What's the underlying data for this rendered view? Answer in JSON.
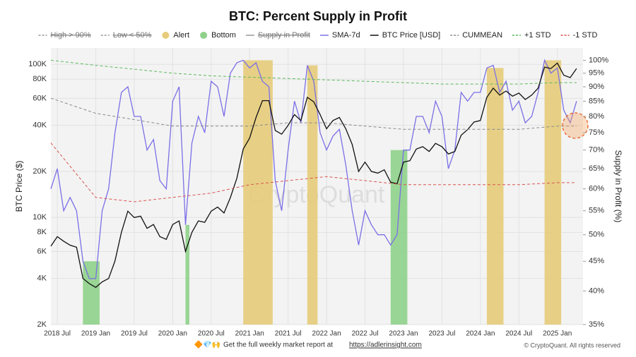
{
  "chart_data": {
    "type": "line",
    "title": "BTC: Percent Supply in Profit",
    "ylabel": "BTC Price ($)",
    "y2label": "Supply in Profit (%)",
    "watermark": "CryptoQuant",
    "footer_icons": "🔶💎🙌",
    "footer_text": "Get the full weekly market report at",
    "footer_link": "https://adlerinsight.com",
    "credit": "© CryptoQuant. All rights reserved",
    "ylog": true,
    "y2log": true,
    "grid": true,
    "xlim": [
      "2018-06",
      "2025-05"
    ],
    "xticks": [
      {
        "value": "2018-07",
        "label": "2018 Jul"
      },
      {
        "value": "2019-01",
        "label": "2019 Jan"
      },
      {
        "value": "2019-07",
        "label": "2019 Jul"
      },
      {
        "value": "2020-01",
        "label": "2020 Jan"
      },
      {
        "value": "2020-07",
        "label": "2020 Jul"
      },
      {
        "value": "2021-01",
        "label": "2021 Jan"
      },
      {
        "value": "2021-07",
        "label": "2021 Jul"
      },
      {
        "value": "2022-01",
        "label": "2022 Jan"
      },
      {
        "value": "2022-07",
        "label": "2022 Jul"
      },
      {
        "value": "2023-01",
        "label": "2023 Jan"
      },
      {
        "value": "2023-07",
        "label": "2023 Jul"
      },
      {
        "value": "2024-01",
        "label": "2024 Jan"
      },
      {
        "value": "2024-07",
        "label": "2024 Jul"
      },
      {
        "value": "2025-01",
        "label": "2025 Jan"
      }
    ],
    "ylim": [
      2000,
      128000
    ],
    "yticks": [
      {
        "value": 2000,
        "label": "2K"
      },
      {
        "value": 4000,
        "label": "4K"
      },
      {
        "value": 6000,
        "label": "6K"
      },
      {
        "value": 8000,
        "label": "8K"
      },
      {
        "value": 10000,
        "label": "10K"
      },
      {
        "value": 20000,
        "label": "20K"
      },
      {
        "value": 40000,
        "label": "40K"
      },
      {
        "value": 60000,
        "label": "60K"
      },
      {
        "value": 80000,
        "label": "80K"
      },
      {
        "value": 100000,
        "label": "100K"
      }
    ],
    "y2lim": [
      35,
      105
    ],
    "y2ticks": [
      {
        "value": 35,
        "label": "35%"
      },
      {
        "value": 40,
        "label": "40%"
      },
      {
        "value": 45,
        "label": "45%"
      },
      {
        "value": 50,
        "label": "50%"
      },
      {
        "value": 55,
        "label": "55%"
      },
      {
        "value": 60,
        "label": "60%"
      },
      {
        "value": 65,
        "label": "65%"
      },
      {
        "value": 70,
        "label": "70%"
      },
      {
        "value": 75,
        "label": "75%"
      },
      {
        "value": 80,
        "label": "80%"
      },
      {
        "value": 85,
        "label": "85%"
      },
      {
        "value": 90,
        "label": "90%"
      },
      {
        "value": 95,
        "label": "95%"
      },
      {
        "value": 100,
        "label": "100%"
      }
    ],
    "x": [
      "2018-06",
      "2018-07",
      "2018-08",
      "2018-09",
      "2018-10",
      "2018-11",
      "2018-12",
      "2019-01",
      "2019-02",
      "2019-03",
      "2019-04",
      "2019-05",
      "2019-06",
      "2019-07",
      "2019-08",
      "2019-09",
      "2019-10",
      "2019-11",
      "2019-12",
      "2020-01",
      "2020-02",
      "2020-03",
      "2020-04",
      "2020-05",
      "2020-06",
      "2020-07",
      "2020-08",
      "2020-09",
      "2020-10",
      "2020-11",
      "2020-12",
      "2021-01",
      "2021-02",
      "2021-03",
      "2021-04",
      "2021-05",
      "2021-06",
      "2021-07",
      "2021-08",
      "2021-09",
      "2021-10",
      "2021-11",
      "2021-12",
      "2022-01",
      "2022-02",
      "2022-03",
      "2022-04",
      "2022-05",
      "2022-06",
      "2022-07",
      "2022-08",
      "2022-09",
      "2022-10",
      "2022-11",
      "2022-12",
      "2023-01",
      "2023-02",
      "2023-03",
      "2023-04",
      "2023-05",
      "2023-06",
      "2023-07",
      "2023-08",
      "2023-09",
      "2023-10",
      "2023-11",
      "2023-12",
      "2024-01",
      "2024-02",
      "2024-03",
      "2024-04",
      "2024-05",
      "2024-06",
      "2024-07",
      "2024-08",
      "2024-09",
      "2024-10",
      "2024-11",
      "2024-12",
      "2025-01",
      "2025-02",
      "2025-03",
      "2025-04"
    ],
    "series": [
      {
        "name": "High > 90%",
        "color": "#888888",
        "style": "dash",
        "hidden": true
      },
      {
        "name": "Low < 50%",
        "color": "#888888",
        "style": "dash",
        "hidden": true
      },
      {
        "name": "Alert",
        "color": "#e6cc7a",
        "style": "dot",
        "axis": "y2",
        "periods": [
          [
            "2020-12",
            "2021-04"
          ],
          [
            "2021-10",
            "2021-11"
          ],
          [
            "2024-02",
            "2024-04"
          ],
          [
            "2024-11",
            "2025-01"
          ]
        ]
      },
      {
        "name": "Bottom",
        "color": "#8fd18a",
        "style": "dot",
        "axis": "y2",
        "periods": [
          [
            "2018-11",
            "2019-01"
          ],
          [
            "2020-03",
            "2020-03"
          ],
          [
            "2022-11",
            "2023-01"
          ]
        ]
      },
      {
        "name": "Supply in Profit",
        "color": "#888888",
        "style": "line",
        "hidden": true
      },
      {
        "name": "SMA-7d",
        "color": "#7b6fe6",
        "style": "line",
        "axis": "y2",
        "values": [
          60,
          65,
          55,
          58,
          55,
          45,
          42,
          42,
          55,
          60,
          75,
          88,
          90,
          80,
          80,
          70,
          73,
          62,
          60,
          85,
          90,
          52,
          72,
          80,
          75,
          92,
          90,
          80,
          95,
          99,
          100,
          97,
          99,
          92,
          90,
          62,
          55,
          70,
          85,
          78,
          98,
          92,
          75,
          70,
          74,
          76,
          66,
          55,
          48,
          55,
          52,
          50,
          50,
          48,
          50,
          70,
          70,
          80,
          80,
          75,
          85,
          80,
          65,
          70,
          88,
          85,
          88,
          88,
          97,
          98,
          88,
          92,
          82,
          85,
          78,
          80,
          88,
          100,
          95,
          97,
          82,
          78,
          85
        ]
      },
      {
        "name": "BTC Price [USD]",
        "color": "#111111",
        "style": "line",
        "axis": "y",
        "values": [
          6500,
          7500,
          7000,
          6600,
          6400,
          4000,
          3700,
          3500,
          3800,
          4000,
          5200,
          8000,
          11000,
          10000,
          10200,
          8500,
          9000,
          7500,
          7200,
          9000,
          9500,
          6000,
          8000,
          9500,
          9300,
          11000,
          11700,
          10700,
          13500,
          18000,
          28000,
          33000,
          45000,
          58000,
          58000,
          37000,
          35000,
          40000,
          47000,
          43000,
          61000,
          57000,
          47000,
          38000,
          43000,
          45000,
          38000,
          30000,
          20000,
          23000,
          20000,
          19500,
          20500,
          17000,
          16600,
          23000,
          23500,
          28000,
          29000,
          27000,
          30500,
          29000,
          26000,
          27000,
          34500,
          37500,
          42000,
          43000,
          61000,
          70000,
          63000,
          67000,
          62000,
          65000,
          59000,
          63000,
          70000,
          96000,
          94000,
          102000,
          85000,
          82000,
          94000
        ]
      },
      {
        "name": "CUMMEAN",
        "color": "#8a8a8a",
        "style": "dashed",
        "axis": "y2",
        "x": [
          "2018-06",
          "2019-01",
          "2019-07",
          "2020-01",
          "2020-07",
          "2021-01",
          "2021-07",
          "2022-01",
          "2022-07",
          "2023-01",
          "2023-07",
          "2024-01",
          "2024-07",
          "2025-01",
          "2025-04"
        ],
        "values": [
          86,
          81,
          79,
          77,
          77,
          77,
          78,
          78,
          77,
          76,
          76,
          76,
          76,
          77,
          77
        ]
      },
      {
        "name": "+1 STD",
        "color": "#5cb85c",
        "style": "dashed",
        "axis": "y2",
        "x": [
          "2018-06",
          "2019-01",
          "2019-07",
          "2020-01",
          "2020-07",
          "2021-01",
          "2021-07",
          "2022-01",
          "2022-07",
          "2023-01",
          "2023-07",
          "2024-01",
          "2024-07",
          "2025-01",
          "2025-04"
        ],
        "values": [
          100,
          98,
          96.5,
          95,
          94,
          93.5,
          93,
          92.5,
          92,
          91.5,
          91,
          91,
          91,
          91.5,
          91.5
        ]
      },
      {
        "name": "-1 STD",
        "color": "#d9534f",
        "style": "dashed",
        "axis": "y2",
        "x": [
          "2018-06",
          "2019-01",
          "2019-07",
          "2020-01",
          "2020-07",
          "2021-01",
          "2021-07",
          "2022-01",
          "2022-07",
          "2023-01",
          "2023-07",
          "2024-01",
          "2024-07",
          "2025-01",
          "2025-04"
        ],
        "values": [
          72,
          58,
          57,
          58,
          59,
          61,
          62,
          63,
          62,
          61,
          61,
          61,
          61,
          61.5,
          61.5
        ]
      }
    ]
  }
}
